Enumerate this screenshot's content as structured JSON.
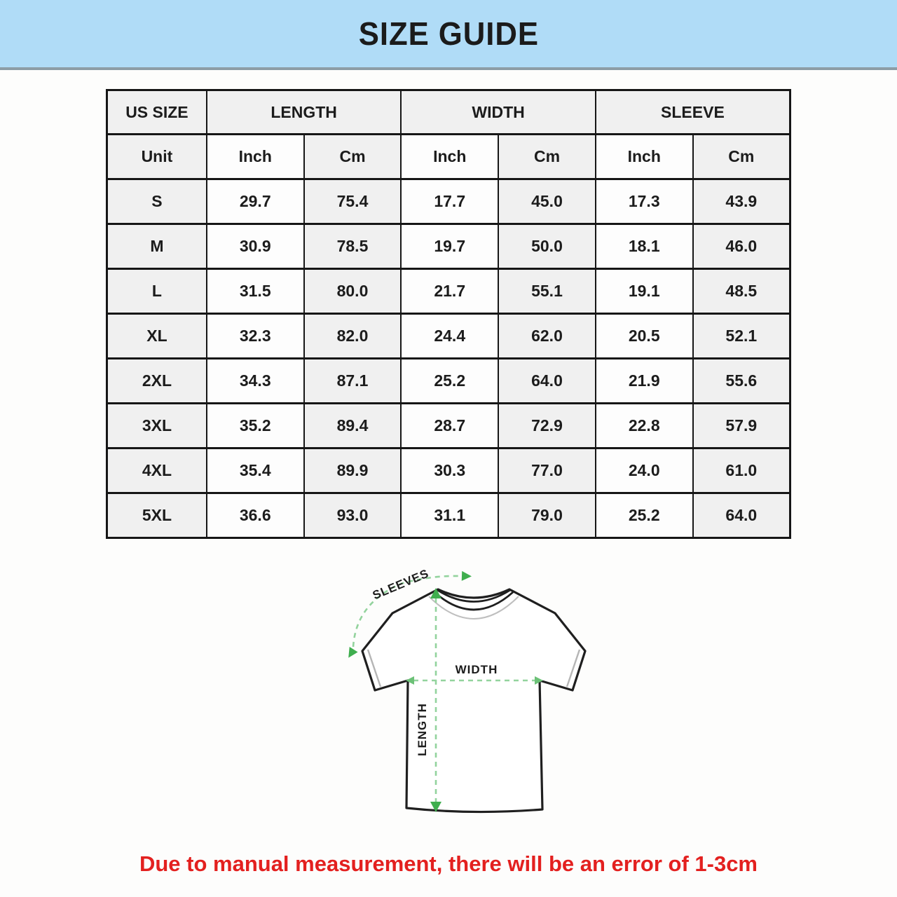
{
  "banner": {
    "title": "SIZE GUIDE",
    "background_color": "#b0dcf7"
  },
  "table": {
    "groups": [
      {
        "label": "US SIZE",
        "colspan": 1
      },
      {
        "label": "LENGTH",
        "colspan": 2
      },
      {
        "label": "WIDTH",
        "colspan": 2
      },
      {
        "label": "SLEEVE",
        "colspan": 2
      }
    ],
    "unit_row": [
      "Unit",
      "Inch",
      "Cm",
      "Inch",
      "Cm",
      "Inch",
      "Cm"
    ],
    "rows": [
      {
        "size": "S",
        "values": [
          "29.7",
          "75.4",
          "17.7",
          "45.0",
          "17.3",
          "43.9"
        ]
      },
      {
        "size": "M",
        "values": [
          "30.9",
          "78.5",
          "19.7",
          "50.0",
          "18.1",
          "46.0"
        ]
      },
      {
        "size": "L",
        "values": [
          "31.5",
          "80.0",
          "21.7",
          "55.1",
          "19.1",
          "48.5"
        ]
      },
      {
        "size": "XL",
        "values": [
          "32.3",
          "82.0",
          "24.4",
          "62.0",
          "20.5",
          "52.1"
        ]
      },
      {
        "size": "2XL",
        "values": [
          "34.3",
          "87.1",
          "25.2",
          "64.0",
          "21.9",
          "55.6"
        ]
      },
      {
        "size": "3XL",
        "values": [
          "35.2",
          "89.4",
          "28.7",
          "72.9",
          "22.8",
          "57.9"
        ]
      },
      {
        "size": "4XL",
        "values": [
          "35.4",
          "89.9",
          "30.3",
          "77.0",
          "24.0",
          "61.0"
        ]
      },
      {
        "size": "5XL",
        "values": [
          "36.6",
          "93.0",
          "31.1",
          "79.0",
          "25.2",
          "64.0"
        ]
      }
    ]
  },
  "diagram": {
    "labels": {
      "sleeves": "SLEEVES",
      "width": "WIDTH",
      "length": "LENGTH"
    },
    "arrow_color": "#3fae4e",
    "dash_color": "#93d39d"
  },
  "footer": {
    "note": "Due to manual measurement, there will be an error of 1-3cm",
    "color": "#e3201f"
  },
  "colors": {
    "header_cell_gray": "#f0f0f0",
    "table_border": "#161616"
  }
}
